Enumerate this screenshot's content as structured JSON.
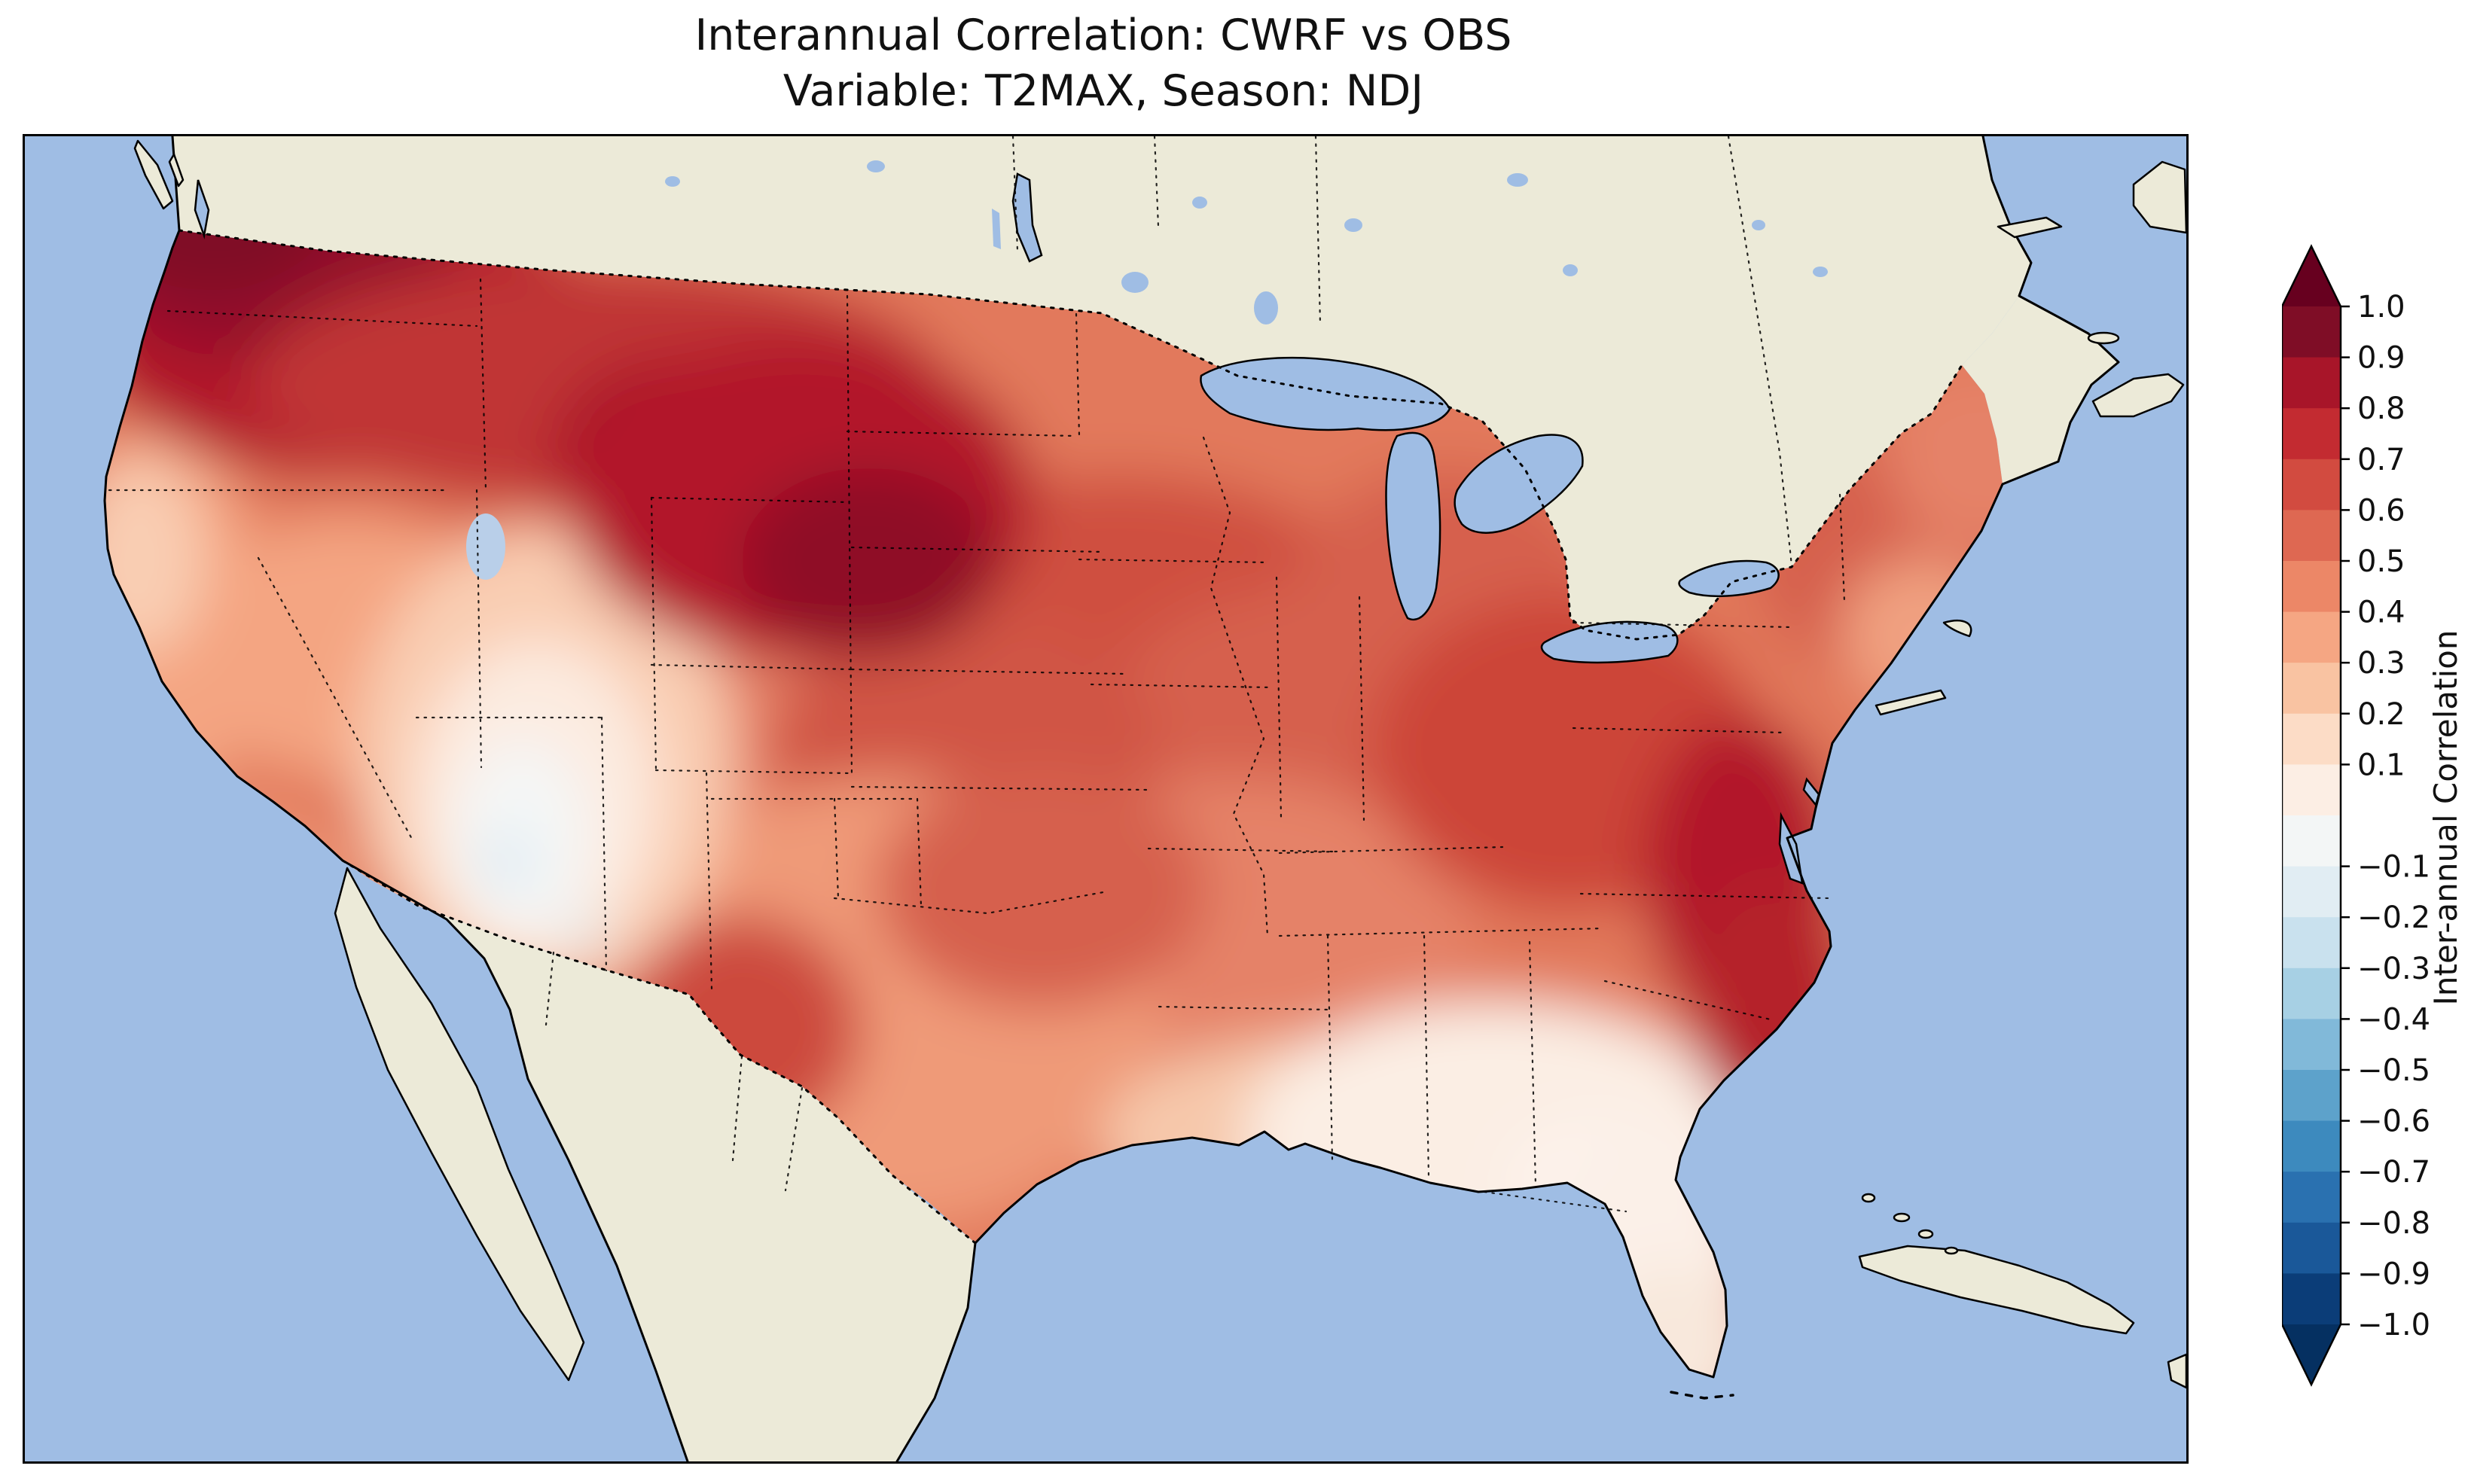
{
  "figure": {
    "title": "Interannual Correlation: CWRF vs OBS",
    "subtitle": "Variable: T2MAX, Season: NDJ"
  },
  "colorbar": {
    "label": "Inter-annual Correlation",
    "orientation": "vertical",
    "extend": "both",
    "over_color": "#67001f",
    "under_color": "#053061",
    "bins": [
      "#7f0d26",
      "#a81529",
      "#c32b31",
      "#d24b40",
      "#de6852",
      "#ec8767",
      "#f5a683",
      "#f9c3a2",
      "#fcdcc6",
      "#fceee4",
      "#f3f6f6",
      "#e1edf3",
      "#c9e1ee",
      "#a7d0e4",
      "#81b9d9",
      "#5da2cb",
      "#3d8abe",
      "#2a71b0",
      "#1a5899",
      "#0b3d78"
    ],
    "ticks": [
      {
        "value": 1.0,
        "label": "1.0"
      },
      {
        "value": 0.9,
        "label": "0.9"
      },
      {
        "value": 0.8,
        "label": "0.8"
      },
      {
        "value": 0.7,
        "label": "0.7"
      },
      {
        "value": 0.6,
        "label": "0.6"
      },
      {
        "value": 0.5,
        "label": "0.5"
      },
      {
        "value": 0.4,
        "label": "0.4"
      },
      {
        "value": 0.3,
        "label": "0.3"
      },
      {
        "value": 0.2,
        "label": "0.2"
      },
      {
        "value": 0.1,
        "label": "0.1"
      },
      {
        "value": -0.1,
        "label": "−0.1"
      },
      {
        "value": -0.2,
        "label": "−0.2"
      },
      {
        "value": -0.3,
        "label": "−0.3"
      },
      {
        "value": -0.4,
        "label": "−0.4"
      },
      {
        "value": -0.5,
        "label": "−0.5"
      },
      {
        "value": -0.6,
        "label": "−0.6"
      },
      {
        "value": -0.7,
        "label": "−0.7"
      },
      {
        "value": -0.8,
        "label": "−0.8"
      },
      {
        "value": -0.9,
        "label": "−0.9"
      },
      {
        "value": -1.0,
        "label": "−1.0"
      }
    ]
  },
  "map": {
    "ocean_color": "#9fbde4",
    "land_color": "#ecead8",
    "lake_color": "#9fbde4",
    "coastline_color": "#000000",
    "border_style": "dotted",
    "region": "Continental United States with southern Canada, northern Mexico, Gulf of Mexico, Atlantic and Pacific"
  },
  "chart_data": {
    "type": "heatmap",
    "title": "Interannual Correlation: CWRF vs OBS",
    "subtitle": "Variable: T2MAX, Season: NDJ",
    "comparison": "CWRF vs OBS",
    "variable": "T2MAX",
    "season": "NDJ",
    "colorbar_label": "Inter-annual Correlation",
    "value_range": [
      -1.0,
      1.0
    ],
    "bin_width": 0.1,
    "colorbar_tick_note": "ticks every 0.1 from 1.0 to −1.0, 0.0 not labeled",
    "colormap": "RdBu reversed, discrete 20 bins, pointed arrows at both ends",
    "map_extent": "CONUS filled contour field; Canada and Mexico unfilled land",
    "region_estimates": [
      {
        "region": "Pacific Northwest (WA / OR / N Idaho)",
        "correlation": 0.85
      },
      {
        "region": "Northern Rockies / Montana",
        "correlation": 0.75
      },
      {
        "region": "Dakotas / Wyoming / Nebraska (Northern Plains)",
        "correlation": 0.8
      },
      {
        "region": "Upper Midwest (MN / WI / IA)",
        "correlation": 0.6
      },
      {
        "region": "Great Lakes / Ohio Valley",
        "correlation": 0.6
      },
      {
        "region": "Northeast / New England",
        "correlation": 0.5
      },
      {
        "region": "Mid-Atlantic coast (Chesapeake to NJ)",
        "correlation": 0.75
      },
      {
        "region": "Carolina coast",
        "correlation": 0.7
      },
      {
        "region": "California coast and Central Valley",
        "correlation": 0.3
      },
      {
        "region": "Great Basin (Nevada)",
        "correlation": 0.25
      },
      {
        "region": "Four Corners (Utah / Arizona / New Mexico)",
        "correlation": 0.0
      },
      {
        "region": "Texas interior",
        "correlation": 0.45
      },
      {
        "region": "West Texas / Big Bend",
        "correlation": 0.65
      },
      {
        "region": "Gulf Coast / Deep South",
        "correlation": 0.2
      },
      {
        "region": "Florida and Southeast coastal plain",
        "correlation": 0.05
      }
    ]
  }
}
